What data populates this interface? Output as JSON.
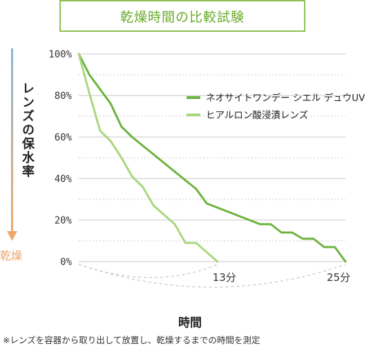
{
  "title": "乾燥時間の比較試験",
  "ylabel": "レンズの保水率",
  "dry_label": "乾燥",
  "xlabel": "時間",
  "footnote": "※レンズを容器から取り出して放置し、乾燥するまでの時間を測定",
  "colors": {
    "title_border": "#8cc152",
    "title_text": "#6aaa2a",
    "series_dark": "#6db33f",
    "series_light": "#a9d77e",
    "arrow_top": "#8ab6d8",
    "arrow_bottom": "#f0a86a",
    "grid": "#c8c8c8"
  },
  "chart_data": {
    "type": "line",
    "ylim": [
      0,
      100
    ],
    "yticks": [
      "100%",
      "80%",
      "60%",
      "40%",
      "20%",
      "0%"
    ],
    "grid": true,
    "legend_position": "top-right",
    "end_labels": [
      "13分",
      "25分"
    ],
    "series": [
      {
        "name": "ネオサイトワンデー シエル デュウUV",
        "points": [
          [
            0,
            100
          ],
          [
            1,
            90
          ],
          [
            3,
            76
          ],
          [
            4,
            65
          ],
          [
            5,
            60
          ],
          [
            11,
            35
          ],
          [
            12,
            28
          ],
          [
            17,
            18
          ],
          [
            18,
            18
          ],
          [
            19,
            14
          ],
          [
            20,
            14
          ],
          [
            21,
            11
          ],
          [
            22,
            11
          ],
          [
            23,
            7
          ],
          [
            24,
            7
          ],
          [
            25,
            0
          ]
        ]
      },
      {
        "name": "ヒアルロン酸浸漬レンズ",
        "points": [
          [
            0,
            100
          ],
          [
            1,
            81
          ],
          [
            2,
            63
          ],
          [
            3,
            58
          ],
          [
            4,
            50
          ],
          [
            5,
            41
          ],
          [
            6,
            36
          ],
          [
            7,
            27
          ],
          [
            9,
            18
          ],
          [
            10,
            9
          ],
          [
            11,
            9
          ],
          [
            13,
            0
          ]
        ]
      }
    ]
  }
}
